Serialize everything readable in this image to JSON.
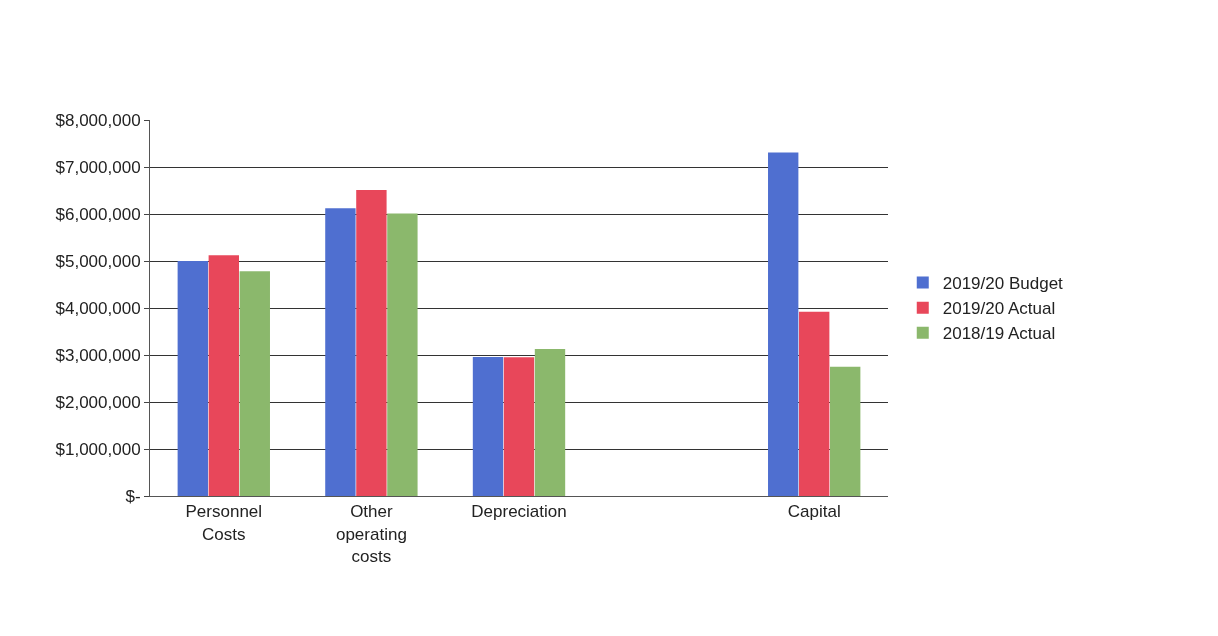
{
  "chart_data": {
    "type": "bar",
    "categories": [
      "Personnel Costs",
      "Other operating costs",
      "Depreciation",
      null,
      "Capital"
    ],
    "series": [
      {
        "name": "2019/20 Budget",
        "color": "#4f6fd0",
        "values": [
          5000000,
          6120000,
          2960000,
          null,
          7310000
        ]
      },
      {
        "name": "2019/20 Actual",
        "color": "#e8475a",
        "values": [
          5120000,
          6510000,
          2950000,
          null,
          3920000
        ]
      },
      {
        "name": "2018/19 Actual",
        "color": "#8bb86c",
        "values": [
          4780000,
          6010000,
          3130000,
          null,
          2750000
        ]
      }
    ],
    "ylim": [
      0,
      8000000
    ],
    "yticks": [
      {
        "value": 0,
        "label": "$-"
      },
      {
        "value": 1000000,
        "label": "$1,000,000"
      },
      {
        "value": 2000000,
        "label": "$2,000,000"
      },
      {
        "value": 3000000,
        "label": "$3,000,000"
      },
      {
        "value": 4000000,
        "label": "$4,000,000"
      },
      {
        "value": 5000000,
        "label": "$5,000,000"
      },
      {
        "value": 6000000,
        "label": "$6,000,000"
      },
      {
        "value": 7000000,
        "label": "$7,000,000"
      },
      {
        "value": 8000000,
        "label": "$8,000,000"
      }
    ],
    "grid": "y",
    "legend": "right"
  }
}
